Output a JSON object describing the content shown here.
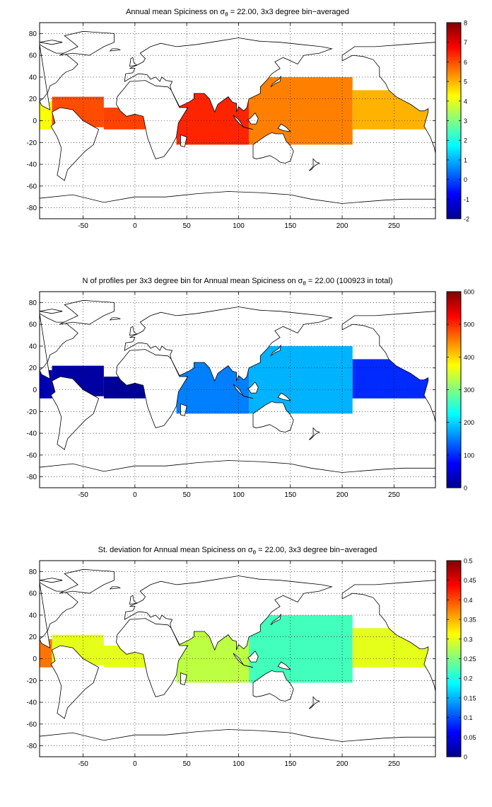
{
  "chart_data": [
    {
      "type": "heatmap",
      "title": "Annual mean Spiciness on σ",
      "title_sub": "θ",
      "title_rest": " = 22.00, 3x3 degree bin−averaged",
      "x_ticks": [
        -50,
        0,
        50,
        100,
        150,
        200,
        250
      ],
      "y_ticks": [
        80,
        60,
        40,
        20,
        0,
        -20,
        -40,
        -60,
        -80
      ],
      "xlim": [
        -92,
        290
      ],
      "ylim": [
        -90,
        90
      ],
      "grid": true,
      "colorbar": {
        "min": -2,
        "max": 8,
        "ticks": [
          8,
          7,
          6,
          5,
          4,
          3,
          2,
          1,
          0,
          -1,
          -2
        ]
      },
      "regions": [
        {
          "lon": [
            -92,
            -80
          ],
          "lat": [
            -8,
            18
          ],
          "value": 4.2
        },
        {
          "lon": [
            -80,
            -30
          ],
          "lat": [
            -6,
            22
          ],
          "value": 6.0
        },
        {
          "lon": [
            -30,
            10
          ],
          "lat": [
            -8,
            12
          ],
          "value": 6.1
        },
        {
          "lon": [
            40,
            110
          ],
          "lat": [
            -22,
            26
          ],
          "value": 6.4
        },
        {
          "lon": [
            110,
            210
          ],
          "lat": [
            -22,
            40
          ],
          "value": 5.5
        },
        {
          "lon": [
            210,
            290
          ],
          "lat": [
            -8,
            28
          ],
          "value": 5.0
        }
      ]
    },
    {
      "type": "heatmap",
      "title": "N of profiles per 3x3 degree bin for Annual mean Spiciness on σ",
      "title_sub": "θ",
      "title_rest": " = 22.00 (100923 in total)",
      "x_ticks": [
        -50,
        0,
        50,
        100,
        150,
        200,
        250
      ],
      "y_ticks": [
        80,
        60,
        40,
        20,
        0,
        -20,
        -40,
        -60,
        -80
      ],
      "xlim": [
        -92,
        290
      ],
      "ylim": [
        -90,
        90
      ],
      "grid": true,
      "colorbar": {
        "min": 0,
        "max": 600,
        "ticks": [
          600,
          500,
          400,
          300,
          200,
          100,
          0
        ]
      },
      "regions": [
        {
          "lon": [
            -92,
            -80
          ],
          "lat": [
            -8,
            18
          ],
          "value": 30
        },
        {
          "lon": [
            -80,
            -30
          ],
          "lat": [
            -6,
            22
          ],
          "value": 20
        },
        {
          "lon": [
            -30,
            10
          ],
          "lat": [
            -8,
            12
          ],
          "value": 15
        },
        {
          "lon": [
            40,
            110
          ],
          "lat": [
            -22,
            26
          ],
          "value": 150
        },
        {
          "lon": [
            110,
            210
          ],
          "lat": [
            -22,
            40
          ],
          "value": 180
        },
        {
          "lon": [
            210,
            290
          ],
          "lat": [
            -8,
            28
          ],
          "value": 100
        }
      ]
    },
    {
      "type": "heatmap",
      "title": "St. deviation for Annual mean Spiciness on σ",
      "title_sub": "θ",
      "title_rest": " = 22.00, 3x3 degree bin−averaged",
      "x_ticks": [
        -50,
        0,
        50,
        100,
        150,
        200,
        250
      ],
      "y_ticks": [
        80,
        60,
        40,
        20,
        0,
        -20,
        -40,
        -60,
        -80
      ],
      "xlim": [
        -92,
        290
      ],
      "ylim": [
        -90,
        90
      ],
      "grid": true,
      "colorbar": {
        "min": 0,
        "max": 0.5,
        "ticks": [
          0.5,
          0.45,
          0.4,
          0.35,
          0.3,
          0.25,
          0.2,
          0.15,
          0.1,
          0.05,
          0
        ]
      },
      "regions": [
        {
          "lon": [
            -92,
            -80
          ],
          "lat": [
            -8,
            18
          ],
          "value": 0.38
        },
        {
          "lon": [
            -80,
            -30
          ],
          "lat": [
            -6,
            22
          ],
          "value": 0.3
        },
        {
          "lon": [
            -30,
            10
          ],
          "lat": [
            -8,
            12
          ],
          "value": 0.3
        },
        {
          "lon": [
            40,
            110
          ],
          "lat": [
            -22,
            26
          ],
          "value": 0.28
        },
        {
          "lon": [
            110,
            210
          ],
          "lat": [
            -22,
            40
          ],
          "value": 0.22
        },
        {
          "lon": [
            210,
            290
          ],
          "lat": [
            -8,
            28
          ],
          "value": 0.3
        }
      ]
    }
  ]
}
